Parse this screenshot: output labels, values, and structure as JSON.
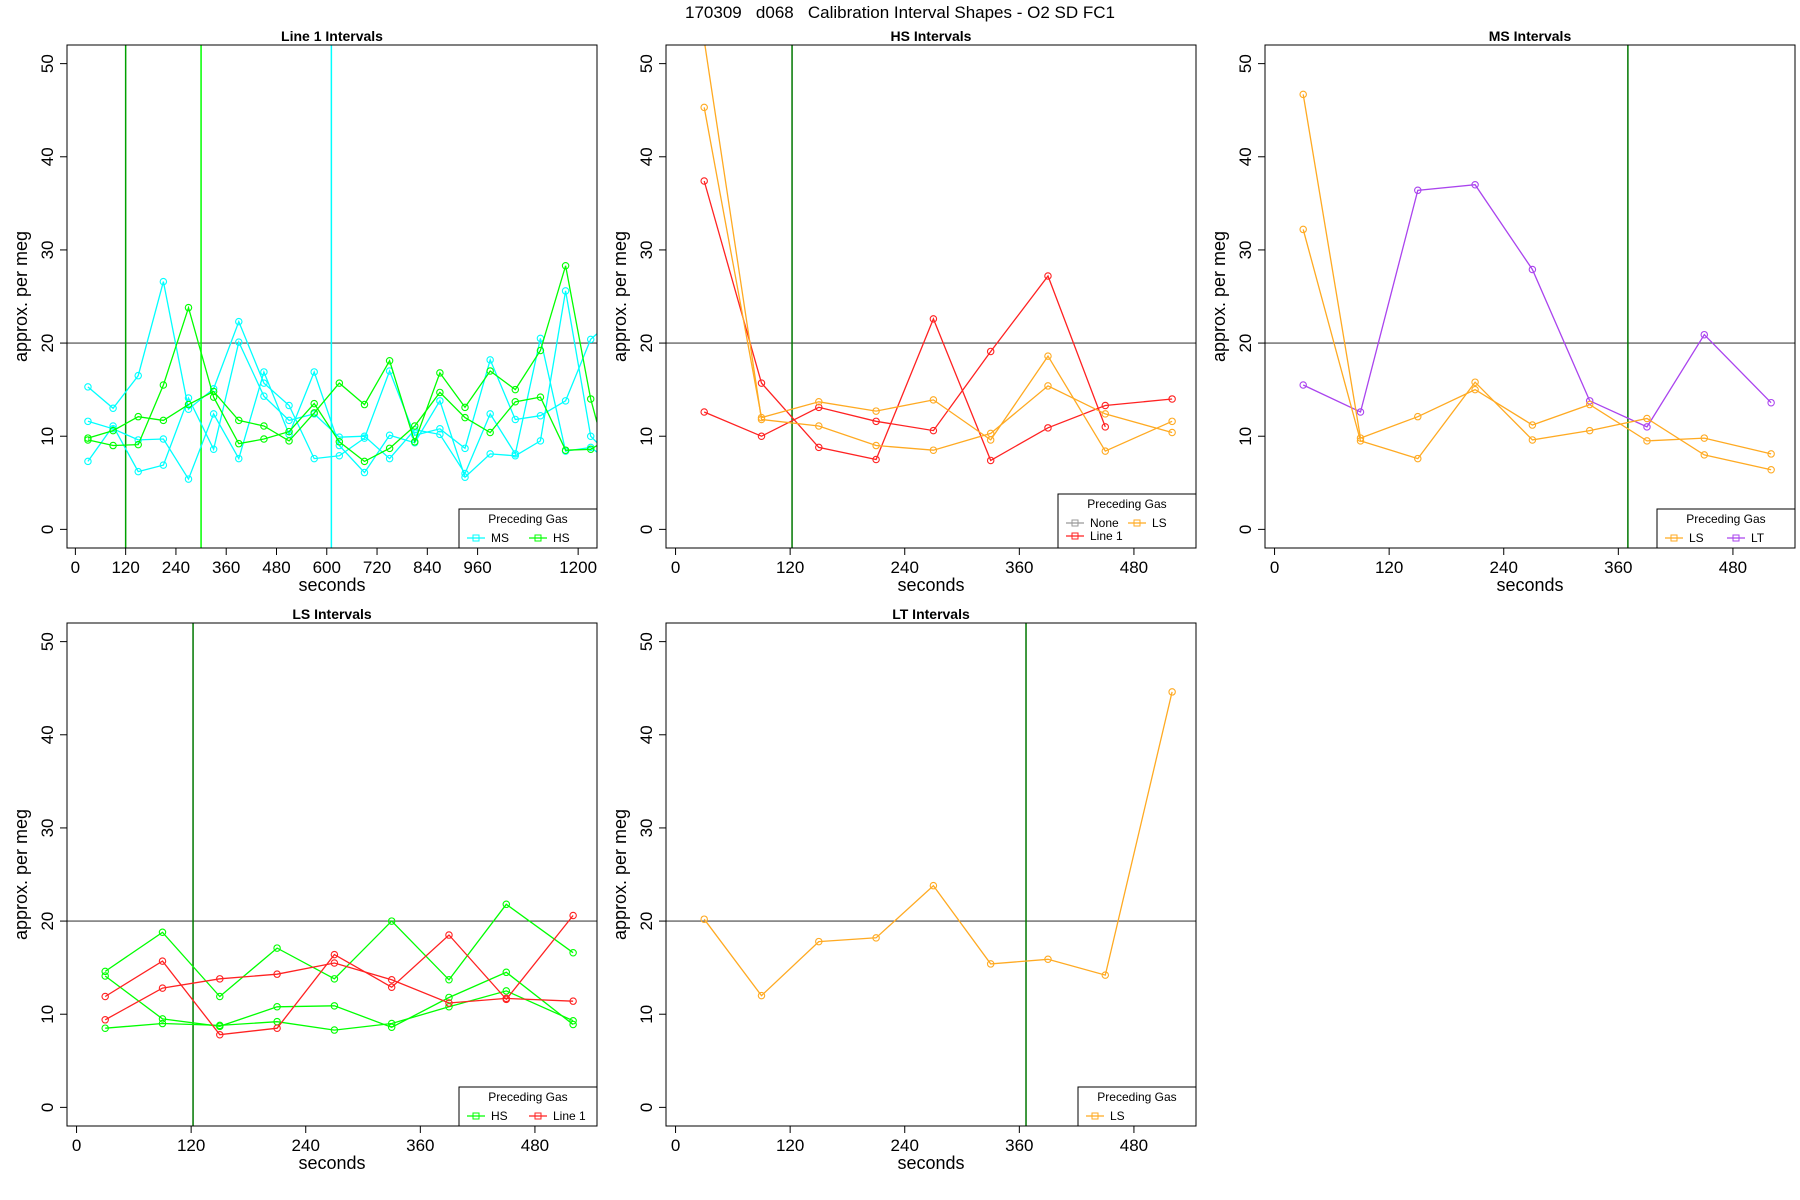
{
  "figure": {
    "title": "170309   d068   Calibration Interval Shapes - O2 SD FC1"
  },
  "chart_data": [
    {
      "type": "line",
      "title": "Line 1 Intervals",
      "xlabel": "seconds",
      "ylabel": "approx. per meg",
      "xlim": [
        -20,
        1245
      ],
      "ylim": [
        -2,
        52
      ],
      "xticks": [
        0,
        120,
        240,
        360,
        480,
        600,
        720,
        840,
        960,
        1200
      ],
      "yticks": [
        0,
        10,
        20,
        30,
        40,
        50
      ],
      "hline": 20,
      "vlines": [
        {
          "x": 120,
          "color": "#00a000"
        },
        {
          "x": 300,
          "color": "#00ff00"
        },
        {
          "x": 611,
          "color": "#00ffff"
        }
      ],
      "legend": {
        "title": "Preceding Gas",
        "position": "bottom-right",
        "entries": [
          {
            "label": "MS",
            "color": "#00ffff"
          },
          {
            "label": "HS",
            "color": "#00ff00"
          }
        ]
      },
      "series": [
        {
          "color": "#00ffff",
          "x": [
            30,
            90,
            150,
            210,
            270,
            330,
            390,
            450,
            510,
            570,
            630,
            690,
            750,
            810,
            870,
            930,
            990,
            1050,
            1110,
            1170,
            1230,
            1245
          ],
          "y": [
            15.3,
            13.0,
            16.5,
            26.6,
            12.9,
            15.1,
            22.3,
            15.7,
            13.3,
            7.6,
            7.9,
            9.8,
            17.0,
            10.1,
            10.8,
            8.7,
            18.2,
            11.8,
            12.2,
            13.8,
            20.4,
            21.0
          ]
        },
        {
          "color": "#00ffff",
          "x": [
            30,
            90,
            150,
            210,
            270,
            330,
            390,
            450,
            510,
            570,
            630,
            690,
            750,
            810,
            870,
            930,
            990,
            1050,
            1110,
            1170,
            1230,
            1245
          ],
          "y": [
            11.6,
            10.8,
            9.6,
            9.7,
            5.4,
            12.4,
            7.6,
            16.9,
            10.2,
            16.9,
            9.0,
            6.1,
            10.1,
            9.3,
            13.8,
            5.6,
            8.1,
            7.9,
            9.5,
            25.6,
            10.0,
            9.3
          ]
        },
        {
          "color": "#00ffff",
          "x": [
            30,
            90,
            150,
            210,
            270,
            330,
            390,
            450,
            510,
            570,
            630,
            690,
            750,
            810,
            870,
            930,
            990,
            1050,
            1110,
            1170,
            1230,
            1245
          ],
          "y": [
            7.3,
            11.1,
            6.2,
            6.9,
            14.1,
            8.6,
            20.1,
            14.3,
            11.7,
            12.4,
            9.9,
            10.0,
            7.6,
            10.7,
            10.2,
            6.0,
            12.4,
            8.1,
            20.5,
            8.4,
            8.8,
            8.3
          ]
        },
        {
          "color": "#00ff00",
          "x": [
            30,
            90,
            150,
            210,
            270,
            330,
            390,
            450,
            510,
            570,
            630,
            690,
            750,
            810,
            870,
            930,
            990,
            1050,
            1110,
            1170,
            1230,
            1245
          ],
          "y": [
            9.8,
            10.6,
            12.1,
            11.7,
            13.4,
            14.8,
            11.7,
            11.1,
            9.5,
            12.5,
            15.7,
            13.4,
            18.1,
            9.4,
            16.8,
            13.1,
            17.0,
            15.0,
            19.2,
            28.3,
            14.0,
            11.5
          ]
        },
        {
          "color": "#00ff00",
          "x": [
            30,
            90,
            150,
            210,
            270,
            330,
            390,
            450,
            510,
            570,
            630,
            690,
            750,
            810,
            870,
            930,
            990,
            1050,
            1110,
            1170,
            1230,
            1245
          ],
          "y": [
            9.6,
            9.0,
            9.1,
            15.5,
            23.8,
            14.2,
            9.2,
            9.7,
            10.5,
            13.5,
            9.4,
            7.3,
            8.7,
            11.1,
            14.7,
            12.0,
            10.4,
            13.7,
            14.2,
            8.5,
            8.6,
            9.0
          ]
        }
      ]
    },
    {
      "type": "line",
      "title": "HS Intervals",
      "xlabel": "seconds",
      "ylabel": "approx. per meg",
      "xlim": [
        -10,
        545
      ],
      "ylim": [
        -2,
        52
      ],
      "xticks": [
        0,
        120,
        240,
        360,
        480
      ],
      "yticks": [
        0,
        10,
        20,
        30,
        40,
        50
      ],
      "hline": 20,
      "vlines": [
        {
          "x": 122,
          "color": "#007700"
        }
      ],
      "legend": {
        "title": "Preceding Gas",
        "position": "bottom-right",
        "entries": [
          {
            "label": "None",
            "color": "#999999"
          },
          {
            "label": "Line 1",
            "color": "#ff2222"
          },
          {
            "label": "LS",
            "color": "#ffaa22"
          }
        ]
      },
      "series": [
        {
          "color": "#ff2222",
          "x": [
            30,
            90,
            150,
            210,
            270,
            330,
            390,
            450,
            520
          ],
          "y": [
            37.4,
            15.7,
            8.8,
            7.5,
            22.6,
            7.4,
            10.9,
            13.3,
            14.0
          ]
        },
        {
          "color": "#ff2222",
          "x": [
            30,
            90,
            150,
            210,
            270,
            330,
            390,
            450
          ],
          "y": [
            12.6,
            10.0,
            13.1,
            11.6,
            10.6,
            19.1,
            27.2,
            11.0
          ]
        },
        {
          "color": "#ffaa22",
          "x": [
            30,
            90,
            150,
            210,
            270,
            330,
            390,
            450,
            520
          ],
          "y": [
            45.3,
            12.0,
            13.7,
            12.7,
            13.9,
            9.6,
            18.6,
            8.4,
            11.6
          ]
        },
        {
          "color": "#ffaa22",
          "x": [
            30,
            90,
            150,
            210,
            270,
            330,
            390,
            450,
            520
          ],
          "y": [
            52.5,
            11.8,
            11.1,
            9.0,
            8.5,
            10.3,
            15.4,
            12.4,
            10.4
          ]
        }
      ]
    },
    {
      "type": "line",
      "title": "MS Intervals",
      "xlabel": "seconds",
      "ylabel": "approx. per meg",
      "xlim": [
        -10,
        545
      ],
      "ylim": [
        -2,
        52
      ],
      "xticks": [
        0,
        120,
        240,
        360,
        480
      ],
      "yticks": [
        0,
        10,
        20,
        30,
        40,
        50
      ],
      "hline": 20,
      "vlines": [
        {
          "x": 370,
          "color": "#007700"
        }
      ],
      "legend": {
        "title": "Preceding Gas",
        "position": "bottom-right",
        "entries": [
          {
            "label": "LS",
            "color": "#ffaa22"
          },
          {
            "label": "LT",
            "color": "#aa44ee"
          }
        ]
      },
      "series": [
        {
          "color": "#aa44ee",
          "x": [
            30,
            90,
            150,
            210,
            270,
            330,
            390,
            450,
            520
          ],
          "y": [
            15.5,
            12.6,
            36.4,
            37.0,
            27.9,
            13.8,
            11.0,
            20.9,
            13.6
          ]
        },
        {
          "color": "#ffaa22",
          "x": [
            30,
            90,
            150,
            210,
            270,
            330,
            390,
            450,
            520
          ],
          "y": [
            46.7,
            9.8,
            12.1,
            15.0,
            11.2,
            13.4,
            9.5,
            9.8,
            8.1
          ]
        },
        {
          "color": "#ffaa22",
          "x": [
            30,
            90,
            150,
            210,
            270,
            330,
            390,
            450,
            520
          ],
          "y": [
            32.2,
            9.5,
            7.6,
            15.8,
            9.6,
            10.6,
            11.9,
            8.0,
            6.4
          ]
        }
      ]
    },
    {
      "type": "line",
      "title": "LS Intervals",
      "xlabel": "seconds",
      "ylabel": "approx. per meg",
      "xlim": [
        -10,
        545
      ],
      "ylim": [
        -2,
        52
      ],
      "xticks": [
        0,
        120,
        240,
        360,
        480
      ],
      "yticks": [
        0,
        10,
        20,
        30,
        40,
        50
      ],
      "hline": 20,
      "vlines": [
        {
          "x": 122,
          "color": "#007700"
        }
      ],
      "legend": {
        "title": "Preceding Gas",
        "position": "bottom-right",
        "entries": [
          {
            "label": "HS",
            "color": "#00ff00"
          },
          {
            "label": "Line 1",
            "color": "#ff2222"
          }
        ]
      },
      "series": [
        {
          "color": "#00ff00",
          "x": [
            30,
            90,
            150,
            210,
            270,
            330,
            390,
            450,
            520
          ],
          "y": [
            14.6,
            18.8,
            11.9,
            17.1,
            13.8,
            20.0,
            13.7,
            21.8,
            16.6
          ]
        },
        {
          "color": "#00ff00",
          "x": [
            30,
            90,
            150,
            210,
            270,
            330,
            390,
            450,
            520
          ],
          "y": [
            14.1,
            9.5,
            8.7,
            10.8,
            10.9,
            8.6,
            11.8,
            14.5,
            8.9
          ]
        },
        {
          "color": "#00ff00",
          "x": [
            30,
            90,
            150,
            210,
            270,
            330,
            390,
            450,
            520
          ],
          "y": [
            8.5,
            9.0,
            8.8,
            9.2,
            8.3,
            9.0,
            10.8,
            12.5,
            9.3
          ]
        },
        {
          "color": "#ff2222",
          "x": [
            30,
            90,
            150,
            210,
            270,
            330,
            390,
            450,
            520
          ],
          "y": [
            11.9,
            15.7,
            7.8,
            8.5,
            16.4,
            12.9,
            18.5,
            11.6,
            20.6
          ]
        },
        {
          "color": "#ff2222",
          "x": [
            30,
            90,
            150,
            210,
            270,
            330,
            390,
            450,
            520
          ],
          "y": [
            9.4,
            12.8,
            13.8,
            14.3,
            15.5,
            13.7,
            11.2,
            11.7,
            11.4
          ]
        }
      ]
    },
    {
      "type": "line",
      "title": "LT Intervals",
      "xlabel": "seconds",
      "ylabel": "approx. per meg",
      "xlim": [
        -10,
        545
      ],
      "ylim": [
        -2,
        52
      ],
      "xticks": [
        0,
        120,
        240,
        360,
        480
      ],
      "yticks": [
        0,
        10,
        20,
        30,
        40,
        50
      ],
      "hline": 20,
      "vlines": [
        {
          "x": 367,
          "color": "#007700"
        }
      ],
      "legend": {
        "title": "Preceding Gas",
        "position": "bottom-right",
        "entries": [
          {
            "label": "LS",
            "color": "#ffaa22"
          }
        ]
      },
      "series": [
        {
          "color": "#ffaa22",
          "x": [
            30,
            90,
            150,
            210,
            270,
            330,
            390,
            450,
            520
          ],
          "y": [
            20.2,
            12.0,
            17.8,
            18.2,
            23.8,
            15.4,
            15.9,
            14.2,
            44.6
          ]
        }
      ]
    }
  ]
}
